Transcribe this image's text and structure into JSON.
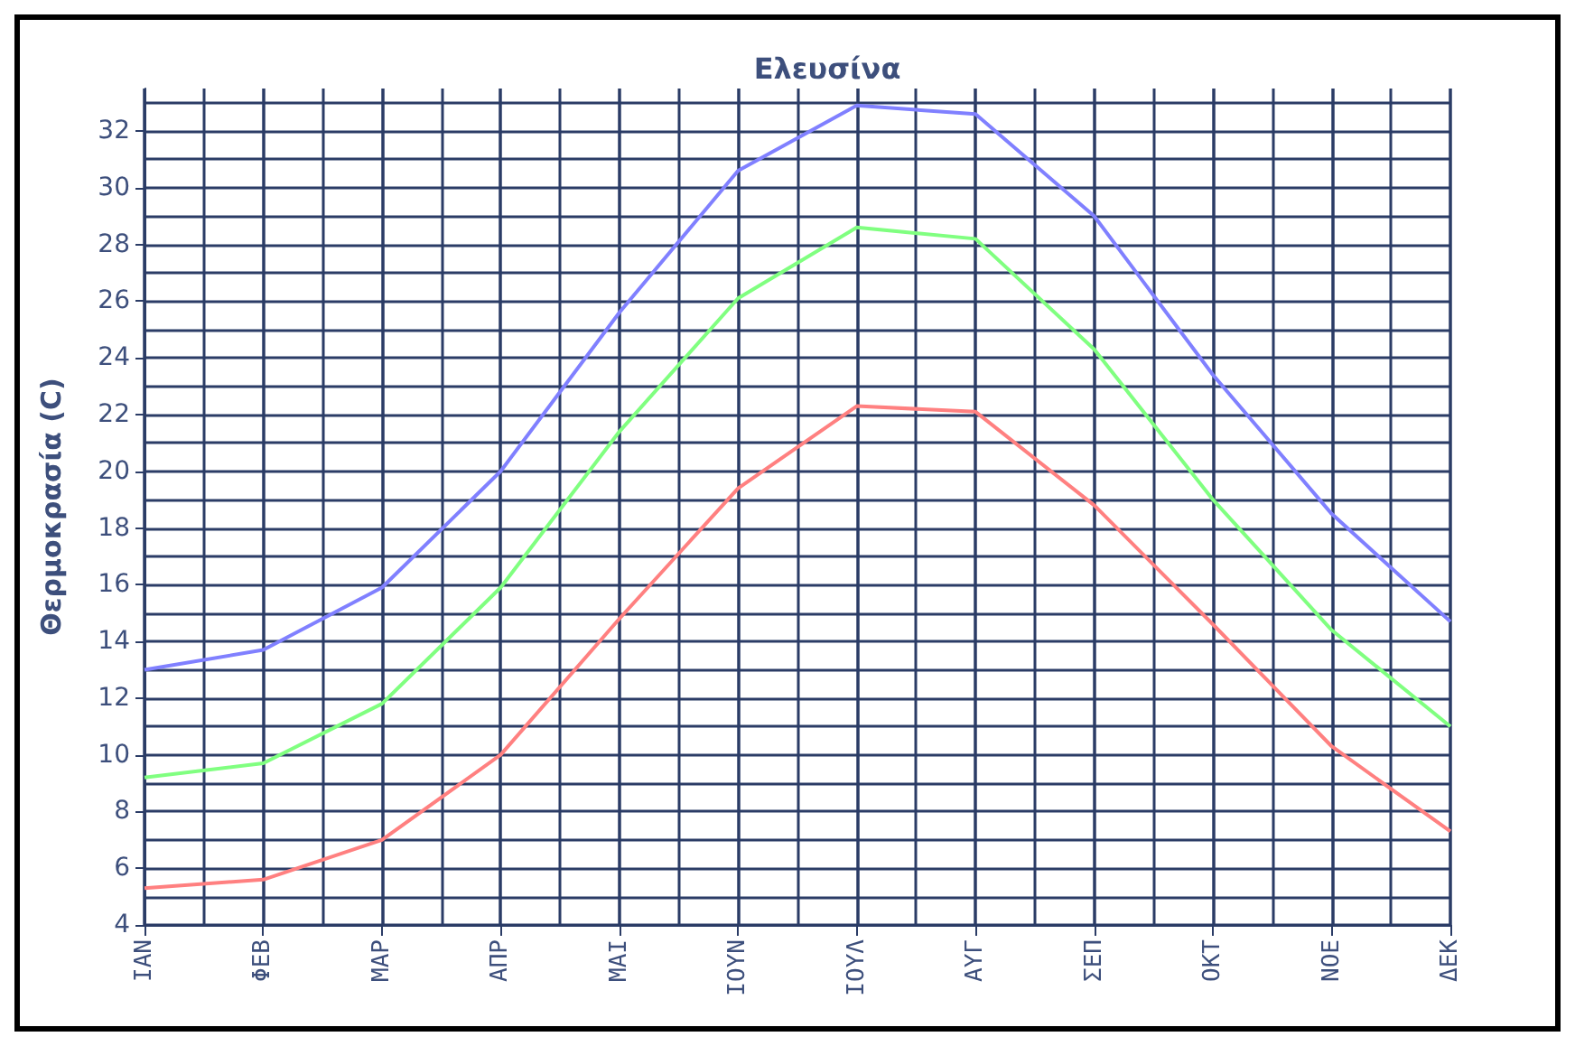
{
  "chart_data": {
    "type": "line",
    "title": "Ελευσίνα",
    "ylabel": "Θερμοκρασία (C)",
    "categories": [
      "ΙΑΝ",
      "ΦΕΒ",
      "ΜΑΡ",
      "ΑΠΡ",
      "ΜΑΙ",
      "ΙΟΥΝ",
      "ΙΟΥΛ",
      "ΑΥΓ",
      "ΣΕΠ",
      "ΟΚΤ",
      "ΝΟΕ",
      "ΔΕΚ"
    ],
    "series": [
      {
        "color": "#8080ff",
        "values": [
          13.0,
          13.7,
          15.9,
          20.0,
          25.6,
          30.6,
          32.9,
          32.6,
          29.0,
          23.4,
          18.5,
          14.7
        ]
      },
      {
        "color": "#80ff80",
        "values": [
          9.2,
          9.7,
          11.8,
          15.9,
          21.4,
          26.1,
          28.6,
          28.2,
          24.3,
          19.0,
          14.4,
          11.0
        ]
      },
      {
        "color": "#ff8080",
        "values": [
          5.3,
          5.6,
          7.0,
          10.0,
          14.8,
          19.4,
          22.3,
          22.1,
          18.8,
          14.6,
          10.3,
          7.3
        ]
      }
    ],
    "ylim": [
      4,
      33.5
    ],
    "yticks": [
      4,
      6,
      8,
      10,
      12,
      14,
      16,
      18,
      20,
      22,
      24,
      26,
      28,
      30,
      32
    ],
    "grid": true,
    "marker": "none",
    "line_style": "solid"
  }
}
